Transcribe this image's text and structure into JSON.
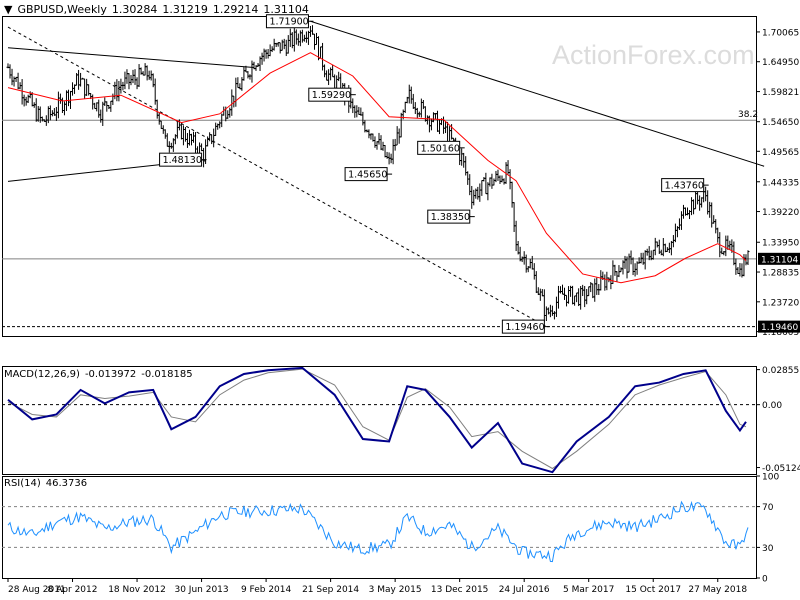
{
  "header": {
    "symbol": "GBPUSD,Weekly",
    "open": "1.30284",
    "high": "1.31219",
    "low": "1.29214",
    "close": "1.31104"
  },
  "watermark": "ActionForex.com",
  "macd_panel": {
    "label": "MACD(12,26,9)",
    "main": "-0.013972",
    "signal": "-0.018185"
  },
  "rsi_panel": {
    "label": "RSI(14)",
    "value": "46.3736"
  },
  "colors": {
    "price_bars": "#000000",
    "sma": "#ff0000",
    "trendline": "#000000",
    "macd_main": "#00008b",
    "macd_signal": "#808080",
    "rsi_line": "#1e90ff",
    "level_line": "#808080",
    "price_box": "#000000"
  },
  "chart_data": [
    {
      "type": "ohlc",
      "title": "GBPUSD,Weekly",
      "x_ticks": [
        "28 Aug 2011",
        "8 Apr 2012",
        "18 Nov 2012",
        "30 Jun 2013",
        "9 Feb 2014",
        "21 Sep 2014",
        "3 May 2015",
        "13 Dec 2015",
        "24 Jul 2016",
        "5 Mar 2017",
        "15 Oct 2017",
        "27 May 2018"
      ],
      "y_ticks": [
        "1.70065",
        "1.64950",
        "1.59821",
        "1.54650",
        "1.49565",
        "1.44335",
        "1.39220",
        "1.33950",
        "1.28835",
        "1.23720",
        "1.18605"
      ],
      "ylim": [
        1.1785,
        1.728
      ],
      "current_price": "1.31104",
      "horizontal_levels": [
        {
          "label": "38.2",
          "value": 1.549
        },
        {
          "label": "1.19460",
          "value": 1.1946
        },
        {
          "label": "",
          "value": 1.311
        }
      ],
      "price_labels": [
        {
          "text": "1.71900",
          "value": 1.719,
          "date": "2014-07-13"
        },
        {
          "text": "1.59290",
          "value": 1.5929,
          "date": "2014-12-07"
        },
        {
          "text": "1.45650",
          "value": 1.4565,
          "date": "2015-04-12"
        },
        {
          "text": "1.50160",
          "value": 1.5016,
          "date": "2015-12-20"
        },
        {
          "text": "1.38350",
          "value": 1.3835,
          "date": "2016-01-24"
        },
        {
          "text": "1.48130",
          "value": 1.4813,
          "date": "2013-07-07"
        },
        {
          "text": "1.19460",
          "value": 1.1946,
          "date": "2016-10-09"
        },
        {
          "text": "1.43760",
          "value": 1.4376,
          "date": "2018-04-15"
        }
      ],
      "series": [
        {
          "name": "",
          "points": [
            [
              "2011-08-28",
              1.64
            ],
            [
              "2011-10-30",
              1.59
            ],
            [
              "2011-12-25",
              1.545
            ],
            [
              "2012-03-04",
              1.58
            ],
            [
              "2012-04-29",
              1.62
            ],
            [
              "2012-07-15",
              1.565
            ],
            [
              "2012-09-23",
              1.61
            ],
            [
              "2012-12-30",
              1.63
            ],
            [
              "2013-02-24",
              1.51
            ],
            [
              "2013-04-21",
              1.53
            ],
            [
              "2013-07-07",
              1.49
            ],
            [
              "2013-09-01",
              1.55
            ],
            [
              "2013-12-29",
              1.65
            ],
            [
              "2014-02-23",
              1.67
            ],
            [
              "2014-04-27",
              1.68
            ],
            [
              "2014-07-13",
              1.71
            ],
            [
              "2014-09-07",
              1.63
            ],
            [
              "2014-11-02",
              1.6
            ],
            [
              "2014-12-07",
              1.565
            ],
            [
              "2015-02-08",
              1.53
            ],
            [
              "2015-04-12",
              1.475
            ],
            [
              "2015-06-21",
              1.59
            ],
            [
              "2015-08-16",
              1.56
            ],
            [
              "2015-10-18",
              1.535
            ],
            [
              "2015-12-20",
              1.485
            ],
            [
              "2016-01-24",
              1.42
            ],
            [
              "2016-03-20",
              1.44
            ],
            [
              "2016-05-29",
              1.46
            ],
            [
              "2016-06-26",
              1.33
            ],
            [
              "2016-08-14",
              1.3
            ],
            [
              "2016-10-09",
              1.215
            ],
            [
              "2016-12-04",
              1.25
            ],
            [
              "2017-02-12",
              1.245
            ],
            [
              "2017-04-23",
              1.27
            ],
            [
              "2017-06-25",
              1.3
            ],
            [
              "2017-08-27",
              1.3
            ],
            [
              "2017-10-22",
              1.33
            ],
            [
              "2017-12-24",
              1.34
            ],
            [
              "2018-02-04",
              1.4
            ],
            [
              "2018-04-15",
              1.42
            ],
            [
              "2018-05-27",
              1.34
            ],
            [
              "2018-07-15",
              1.32
            ],
            [
              "2018-08-12",
              1.29
            ],
            [
              "2018-09-02",
              1.311
            ]
          ]
        },
        {
          "name": "",
          "points": [
            [
              "2011-08-28",
              1.605
            ],
            [
              "2012-03-04",
              1.582
            ],
            [
              "2012-09-23",
              1.592
            ],
            [
              "2013-04-21",
              1.545
            ],
            [
              "2013-09-01",
              1.56
            ],
            [
              "2014-02-23",
              1.63
            ],
            [
              "2014-07-13",
              1.665
            ],
            [
              "2014-12-07",
              1.625
            ],
            [
              "2015-04-12",
              1.555
            ],
            [
              "2015-10-18",
              1.55
            ],
            [
              "2016-03-20",
              1.48
            ],
            [
              "2016-06-26",
              1.445
            ],
            [
              "2016-10-09",
              1.355
            ],
            [
              "2017-02-12",
              1.285
            ],
            [
              "2017-06-25",
              1.27
            ],
            [
              "2017-10-22",
              1.282
            ],
            [
              "2018-02-04",
              1.312
            ],
            [
              "2018-05-27",
              1.337
            ],
            [
              "2018-08-12",
              1.318
            ],
            [
              "2018-09-02",
              1.308
            ]
          ]
        }
      ],
      "trendlines": [
        {
          "style": "solid",
          "points": [
            [
              "2011-08-28",
              1.6735
            ],
            [
              "2013-12-29",
              1.6395
            ]
          ]
        },
        {
          "style": "solid",
          "points": [
            [
              "2011-08-28",
              1.444
            ],
            [
              "2013-07-07",
              1.481
            ]
          ]
        },
        {
          "style": "solid",
          "points": [
            [
              "2014-07-13",
              1.719
            ],
            [
              "2018-11-04",
              1.47
            ]
          ]
        },
        {
          "style": "dashed",
          "points": [
            [
              "2011-08-28",
              1.709
            ],
            [
              "2016-10-09",
              1.1946
            ]
          ]
        }
      ]
    },
    {
      "type": "line",
      "title": "MACD(12,26,9) -0.013972 -0.018185",
      "y_ticks": [
        "0.02855",
        "0.00",
        "-0.05124"
      ],
      "ylim": [
        -0.0565,
        0.0315
      ],
      "zero_line": 0,
      "series": [
        {
          "name": "MACD",
          "points": [
            [
              "2011-08-28",
              0.004
            ],
            [
              "2011-11-20",
              -0.012
            ],
            [
              "2012-02-12",
              -0.008
            ],
            [
              "2012-05-06",
              0.012
            ],
            [
              "2012-07-29",
              0.001
            ],
            [
              "2012-10-21",
              0.01
            ],
            [
              "2013-01-13",
              0.012
            ],
            [
              "2013-03-17",
              -0.02
            ],
            [
              "2013-06-09",
              -0.01
            ],
            [
              "2013-09-01",
              0.015
            ],
            [
              "2013-11-24",
              0.025
            ],
            [
              "2014-02-16",
              0.028
            ],
            [
              "2014-06-15",
              0.03
            ],
            [
              "2014-10-05",
              0.008
            ],
            [
              "2015-01-11",
              -0.028
            ],
            [
              "2015-04-12",
              -0.03
            ],
            [
              "2015-06-14",
              0.015
            ],
            [
              "2015-08-16",
              0.012
            ],
            [
              "2015-11-08",
              -0.01
            ],
            [
              "2016-01-24",
              -0.035
            ],
            [
              "2016-04-24",
              -0.015
            ],
            [
              "2016-07-17",
              -0.048
            ],
            [
              "2016-10-30",
              -0.055
            ],
            [
              "2017-01-22",
              -0.03
            ],
            [
              "2017-05-14",
              -0.01
            ],
            [
              "2017-08-13",
              0.015
            ],
            [
              "2017-11-05",
              0.018
            ],
            [
              "2018-01-28",
              0.025
            ],
            [
              "2018-04-15",
              0.028
            ],
            [
              "2018-06-24",
              -0.005
            ],
            [
              "2018-08-12",
              -0.021
            ],
            [
              "2018-09-02",
              -0.014
            ]
          ]
        },
        {
          "name": "Signal",
          "points": [
            [
              "2011-08-28",
              0.002
            ],
            [
              "2011-11-20",
              -0.008
            ],
            [
              "2012-02-12",
              -0.01
            ],
            [
              "2012-05-06",
              0.008
            ],
            [
              "2012-07-29",
              0.005
            ],
            [
              "2012-10-21",
              0.007
            ],
            [
              "2013-01-13",
              0.01
            ],
            [
              "2013-03-17",
              -0.01
            ],
            [
              "2013-06-09",
              -0.014
            ],
            [
              "2013-09-01",
              0.008
            ],
            [
              "2013-11-24",
              0.02
            ],
            [
              "2014-02-16",
              0.026
            ],
            [
              "2014-06-15",
              0.029
            ],
            [
              "2014-10-05",
              0.016
            ],
            [
              "2015-01-11",
              -0.018
            ],
            [
              "2015-04-12",
              -0.029
            ],
            [
              "2015-06-14",
              0.006
            ],
            [
              "2015-08-16",
              0.013
            ],
            [
              "2015-11-08",
              -0.002
            ],
            [
              "2016-01-24",
              -0.026
            ],
            [
              "2016-04-24",
              -0.022
            ],
            [
              "2016-07-17",
              -0.038
            ],
            [
              "2016-10-30",
              -0.052
            ],
            [
              "2017-01-22",
              -0.038
            ],
            [
              "2017-05-14",
              -0.016
            ],
            [
              "2017-08-13",
              0.008
            ],
            [
              "2017-11-05",
              0.016
            ],
            [
              "2018-01-28",
              0.022
            ],
            [
              "2018-04-15",
              0.027
            ],
            [
              "2018-06-24",
              0.008
            ],
            [
              "2018-08-12",
              -0.016
            ],
            [
              "2018-09-02",
              -0.018
            ]
          ]
        }
      ]
    },
    {
      "type": "line",
      "title": "RSI(14) 46.3736",
      "y_ticks": [
        "100",
        "70",
        "30",
        "0"
      ],
      "ylim": [
        0,
        100
      ],
      "levels": [
        70,
        30
      ],
      "series": [
        {
          "name": "RSI",
          "points": [
            [
              "2011-08-28",
              50
            ],
            [
              "2011-11-20",
              42
            ],
            [
              "2012-02-12",
              55
            ],
            [
              "2012-05-06",
              60
            ],
            [
              "2012-07-29",
              48
            ],
            [
              "2012-10-21",
              55
            ],
            [
              "2013-01-13",
              58
            ],
            [
              "2013-03-17",
              30
            ],
            [
              "2013-06-09",
              45
            ],
            [
              "2013-09-01",
              62
            ],
            [
              "2013-11-24",
              65
            ],
            [
              "2014-02-16",
              66
            ],
            [
              "2014-06-15",
              68
            ],
            [
              "2014-10-05",
              35
            ],
            [
              "2014-12-28",
              28
            ],
            [
              "2015-04-12",
              32
            ],
            [
              "2015-06-14",
              60
            ],
            [
              "2015-08-16",
              45
            ],
            [
              "2015-11-08",
              52
            ],
            [
              "2016-01-24",
              30
            ],
            [
              "2016-04-24",
              48
            ],
            [
              "2016-07-17",
              25
            ],
            [
              "2016-10-30",
              22
            ],
            [
              "2017-01-22",
              45
            ],
            [
              "2017-05-14",
              55
            ],
            [
              "2017-08-13",
              50
            ],
            [
              "2017-11-05",
              58
            ],
            [
              "2018-01-28",
              70
            ],
            [
              "2018-04-15",
              68
            ],
            [
              "2018-06-24",
              35
            ],
            [
              "2018-08-12",
              30
            ],
            [
              "2018-09-02",
              46.37
            ]
          ]
        }
      ]
    }
  ]
}
